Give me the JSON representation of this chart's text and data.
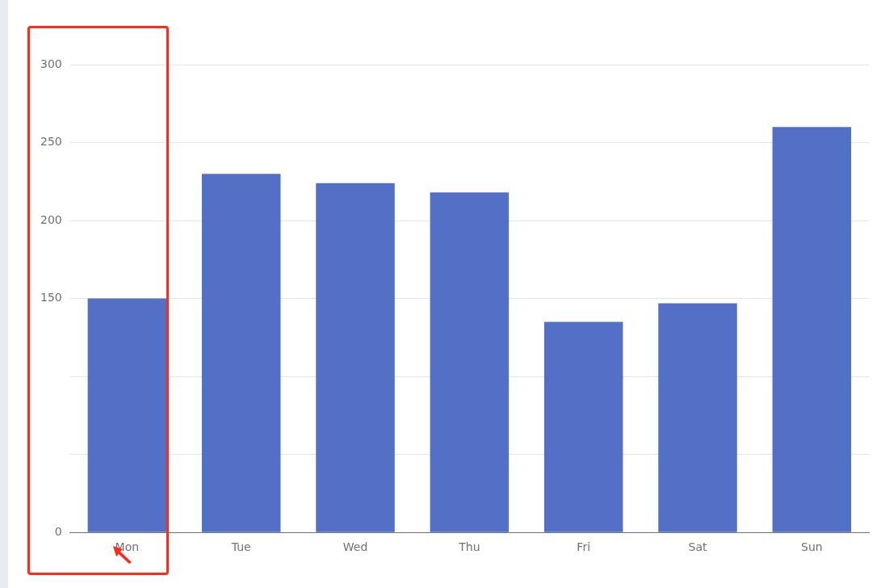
{
  "chart_data": {
    "type": "bar",
    "categories": [
      "Mon",
      "Tue",
      "Wed",
      "Thu",
      "Fri",
      "Sat",
      "Sun"
    ],
    "values": [
      150,
      230,
      224,
      218,
      135,
      147,
      260
    ],
    "color": "#5470c6",
    "ylim": [
      0,
      300
    ],
    "yticks": [
      0,
      {
        "value": 50,
        "label": null
      },
      {
        "value": 100,
        "label": null
      },
      150,
      200,
      250,
      300
    ],
    "grid": "y"
  }
}
